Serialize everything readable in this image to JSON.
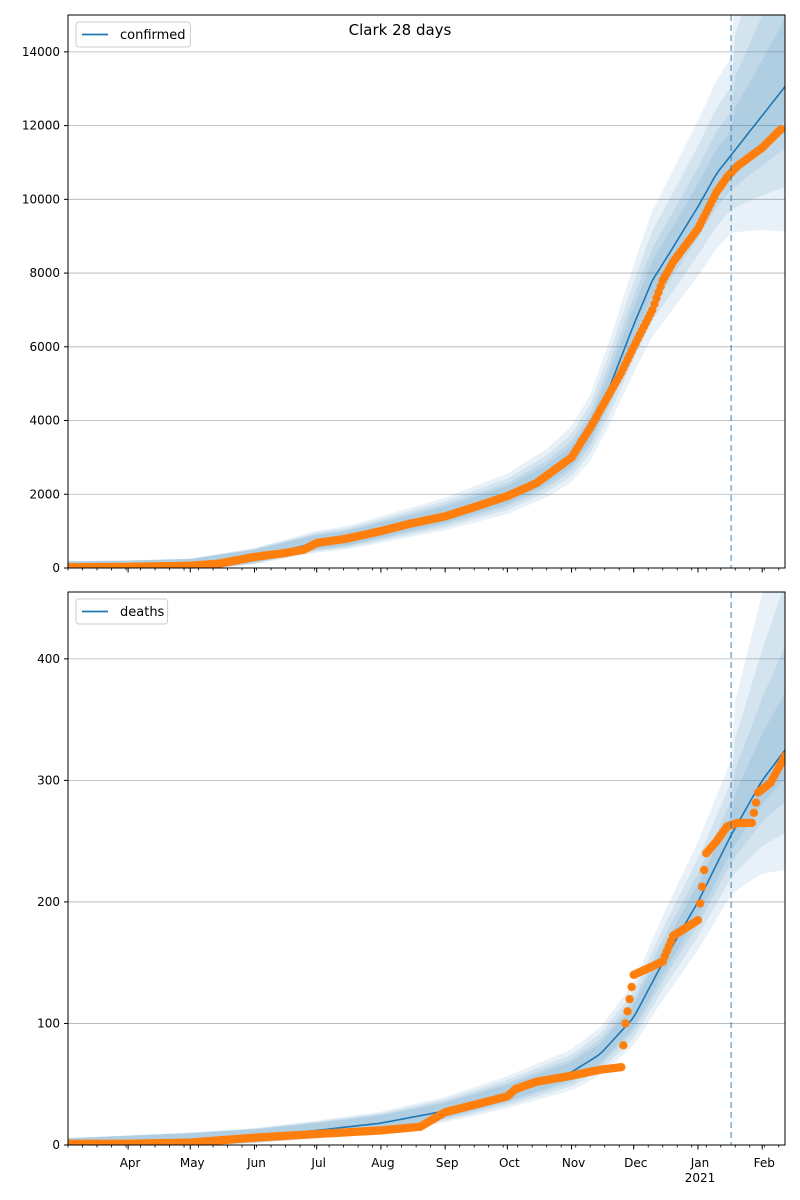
{
  "title": "Clark 28 days",
  "chart_data": [
    {
      "type": "line",
      "panel": "top",
      "series": [
        {
          "name": "confirmed",
          "kind": "model-line",
          "color": "#1f77b4",
          "x": [
            "2020-03-01",
            "2020-04-01",
            "2020-05-01",
            "2020-06-01",
            "2020-07-01",
            "2020-07-15",
            "2020-08-01",
            "2020-09-01",
            "2020-10-01",
            "2020-10-20",
            "2020-11-01",
            "2020-11-10",
            "2020-11-20",
            "2020-12-01",
            "2020-12-10",
            "2020-12-20",
            "2021-01-01",
            "2021-01-10",
            "2021-01-17"
          ],
          "y": [
            0,
            20,
            60,
            300,
            680,
            780,
            1000,
            1420,
            1950,
            2500,
            3000,
            3700,
            5000,
            6600,
            7800,
            8700,
            9800,
            10700,
            11200
          ]
        },
        {
          "name": "",
          "kind": "observed-points",
          "color": "#ff7f0e",
          "x": [
            "2020-03-01",
            "2020-04-01",
            "2020-05-01",
            "2020-05-15",
            "2020-06-01",
            "2020-06-15",
            "2020-06-25",
            "2020-07-01",
            "2020-07-15",
            "2020-08-01",
            "2020-08-15",
            "2020-09-01",
            "2020-09-15",
            "2020-10-01",
            "2020-10-15",
            "2020-11-01",
            "2020-11-10",
            "2020-11-20",
            "2020-11-25",
            "2020-12-01",
            "2020-12-10",
            "2020-12-15",
            "2020-12-20",
            "2021-01-01",
            "2021-01-10",
            "2021-01-15",
            "2021-01-20",
            "2021-02-01",
            "2021-02-10"
          ],
          "y": [
            20,
            30,
            60,
            120,
            300,
            400,
            500,
            680,
            790,
            1000,
            1200,
            1400,
            1650,
            1950,
            2300,
            3000,
            3800,
            4800,
            5300,
            6000,
            7000,
            7800,
            8300,
            9200,
            10200,
            10600,
            10900,
            11400,
            11900
          ]
        }
      ],
      "bands": {
        "color": "#1f77b4",
        "levels": 4
      },
      "ylim": [
        0,
        15000
      ],
      "yticks": [
        0,
        2000,
        4000,
        6000,
        8000,
        10000,
        12000,
        14000
      ],
      "grid": "y",
      "legend": "top-left",
      "vline": "2021-01-17"
    },
    {
      "type": "line",
      "panel": "bottom",
      "series": [
        {
          "name": "deaths",
          "kind": "model-line",
          "color": "#1f77b4",
          "x": [
            "2020-03-01",
            "2020-04-01",
            "2020-05-01",
            "2020-06-01",
            "2020-07-01",
            "2020-08-01",
            "2020-09-01",
            "2020-10-01",
            "2020-11-01",
            "2020-11-15",
            "2020-12-01",
            "2020-12-15",
            "2021-01-01",
            "2021-01-17",
            "2021-02-01",
            "2021-02-12"
          ],
          "y": [
            0,
            2,
            4,
            7,
            12,
            18,
            28,
            42,
            60,
            75,
            105,
            150,
            200,
            255,
            300,
            325
          ]
        },
        {
          "name": "",
          "kind": "observed-points",
          "color": "#ff7f0e",
          "x": [
            "2020-03-01",
            "2020-04-01",
            "2020-05-01",
            "2020-06-01",
            "2020-07-01",
            "2020-08-01",
            "2020-08-20",
            "2020-09-01",
            "2020-09-15",
            "2020-10-01",
            "2020-10-05",
            "2020-10-15",
            "2020-11-01",
            "2020-11-15",
            "2020-11-25",
            "2020-11-27",
            "2020-12-01",
            "2020-12-10",
            "2020-12-15",
            "2020-12-20",
            "2021-01-01",
            "2021-01-05",
            "2021-01-10",
            "2021-01-15",
            "2021-01-20",
            "2021-01-27",
            "2021-01-30",
            "2021-02-05",
            "2021-02-12"
          ],
          "y": [
            1,
            1,
            2,
            6,
            9,
            12,
            15,
            27,
            33,
            40,
            46,
            52,
            57,
            62,
            64,
            100,
            140,
            147,
            151,
            172,
            185,
            240,
            250,
            262,
            265,
            265,
            290,
            298,
            320
          ]
        }
      ],
      "bands": {
        "color": "#1f77b4",
        "levels": 4
      },
      "ylim": [
        0,
        455
      ],
      "yticks": [
        0,
        100,
        200,
        300,
        400
      ],
      "grid": "y",
      "legend": "top-left",
      "vline": "2021-01-17"
    }
  ],
  "x_axis": {
    "range": [
      "2020-03-03",
      "2021-02-12"
    ],
    "tick_labels": [
      "Apr",
      "May",
      "Jun",
      "Jul",
      "Aug",
      "Sep",
      "Oct",
      "Nov",
      "Dec",
      "Jan",
      "Feb"
    ],
    "tick_dates": [
      "2020-04-01",
      "2020-05-01",
      "2020-06-01",
      "2020-07-01",
      "2020-08-01",
      "2020-09-01",
      "2020-10-01",
      "2020-11-01",
      "2020-12-01",
      "2021-01-01",
      "2021-02-01"
    ],
    "year_label": "2021"
  }
}
